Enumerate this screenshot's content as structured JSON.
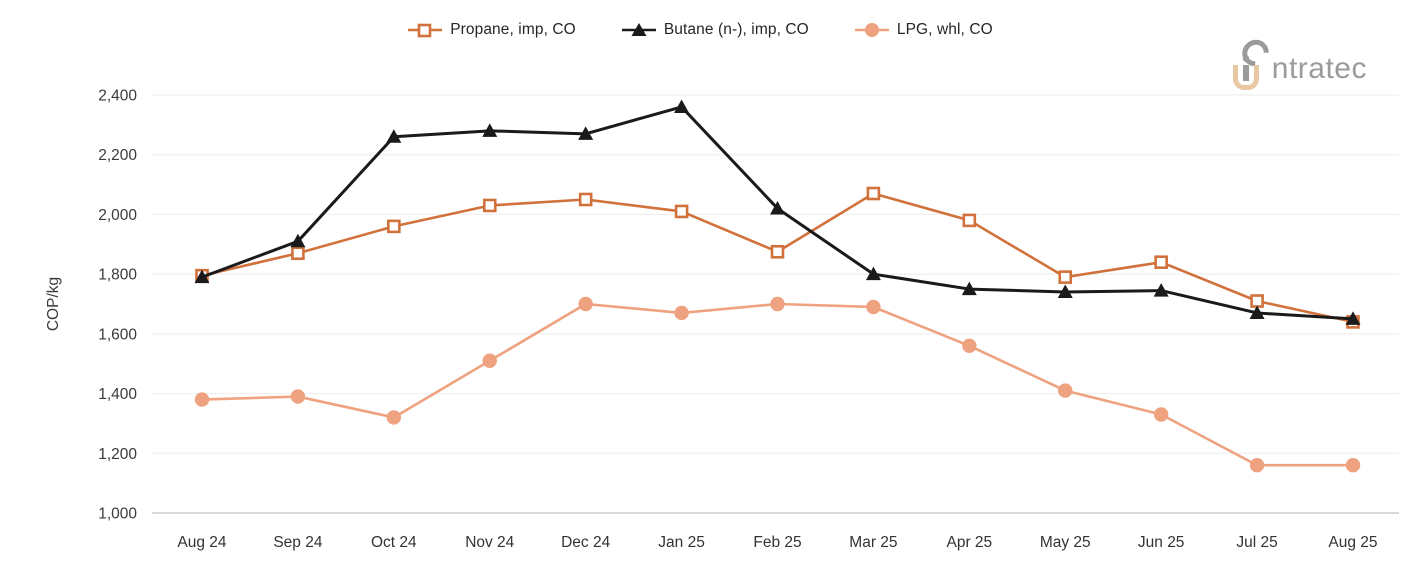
{
  "logo": {
    "brand": "intratec",
    "text": "ntratec",
    "gray": "#9b9b9b",
    "peach": "#e9c7a2"
  },
  "chart_data": {
    "type": "line",
    "title": "",
    "xlabel": "",
    "ylabel": "COP/kg",
    "ylim": [
      1000,
      2400
    ],
    "ytick_step": 200,
    "ytick_values": [
      1000,
      1200,
      1400,
      1600,
      1800,
      2000,
      2200,
      2400
    ],
    "ytick_labels": [
      "1,000",
      "1,200",
      "1,400",
      "1,600",
      "1,800",
      "2,000",
      "2,200",
      "2,400"
    ],
    "categories": [
      "Aug 24",
      "Sep 24",
      "Oct 24",
      "Nov 24",
      "Dec 24",
      "Jan 25",
      "Feb 25",
      "Mar 25",
      "Apr 25",
      "May 25",
      "Jun 25",
      "Jul 25",
      "Aug 25"
    ],
    "grid": "horizontal",
    "legend_position": "top-center",
    "colors": {
      "grid_line": "#efefef",
      "axis_line": "#c2c2c2",
      "tick_text": "#3a3a3a"
    },
    "series": [
      {
        "name": "Propane, imp, CO",
        "color": "#d1713b",
        "marker": "square",
        "values": [
          1795,
          1870,
          1960,
          2030,
          2050,
          2010,
          1875,
          2070,
          1980,
          1790,
          1840,
          1710,
          1640
        ]
      },
      {
        "name": "Butane (n-), imp, CO",
        "color": "#1a1a1a",
        "marker": "triangle",
        "values": [
          1790,
          1910,
          2260,
          2280,
          2270,
          2360,
          2020,
          1800,
          1750,
          1740,
          1745,
          1670,
          1650
        ]
      },
      {
        "name": "LPG, whl, CO",
        "color": "#efa27f",
        "marker": "circle",
        "values": [
          1380,
          1390,
          1320,
          1510,
          1700,
          1670,
          1700,
          1690,
          1560,
          1410,
          1330,
          1160,
          1160
        ]
      }
    ]
  }
}
